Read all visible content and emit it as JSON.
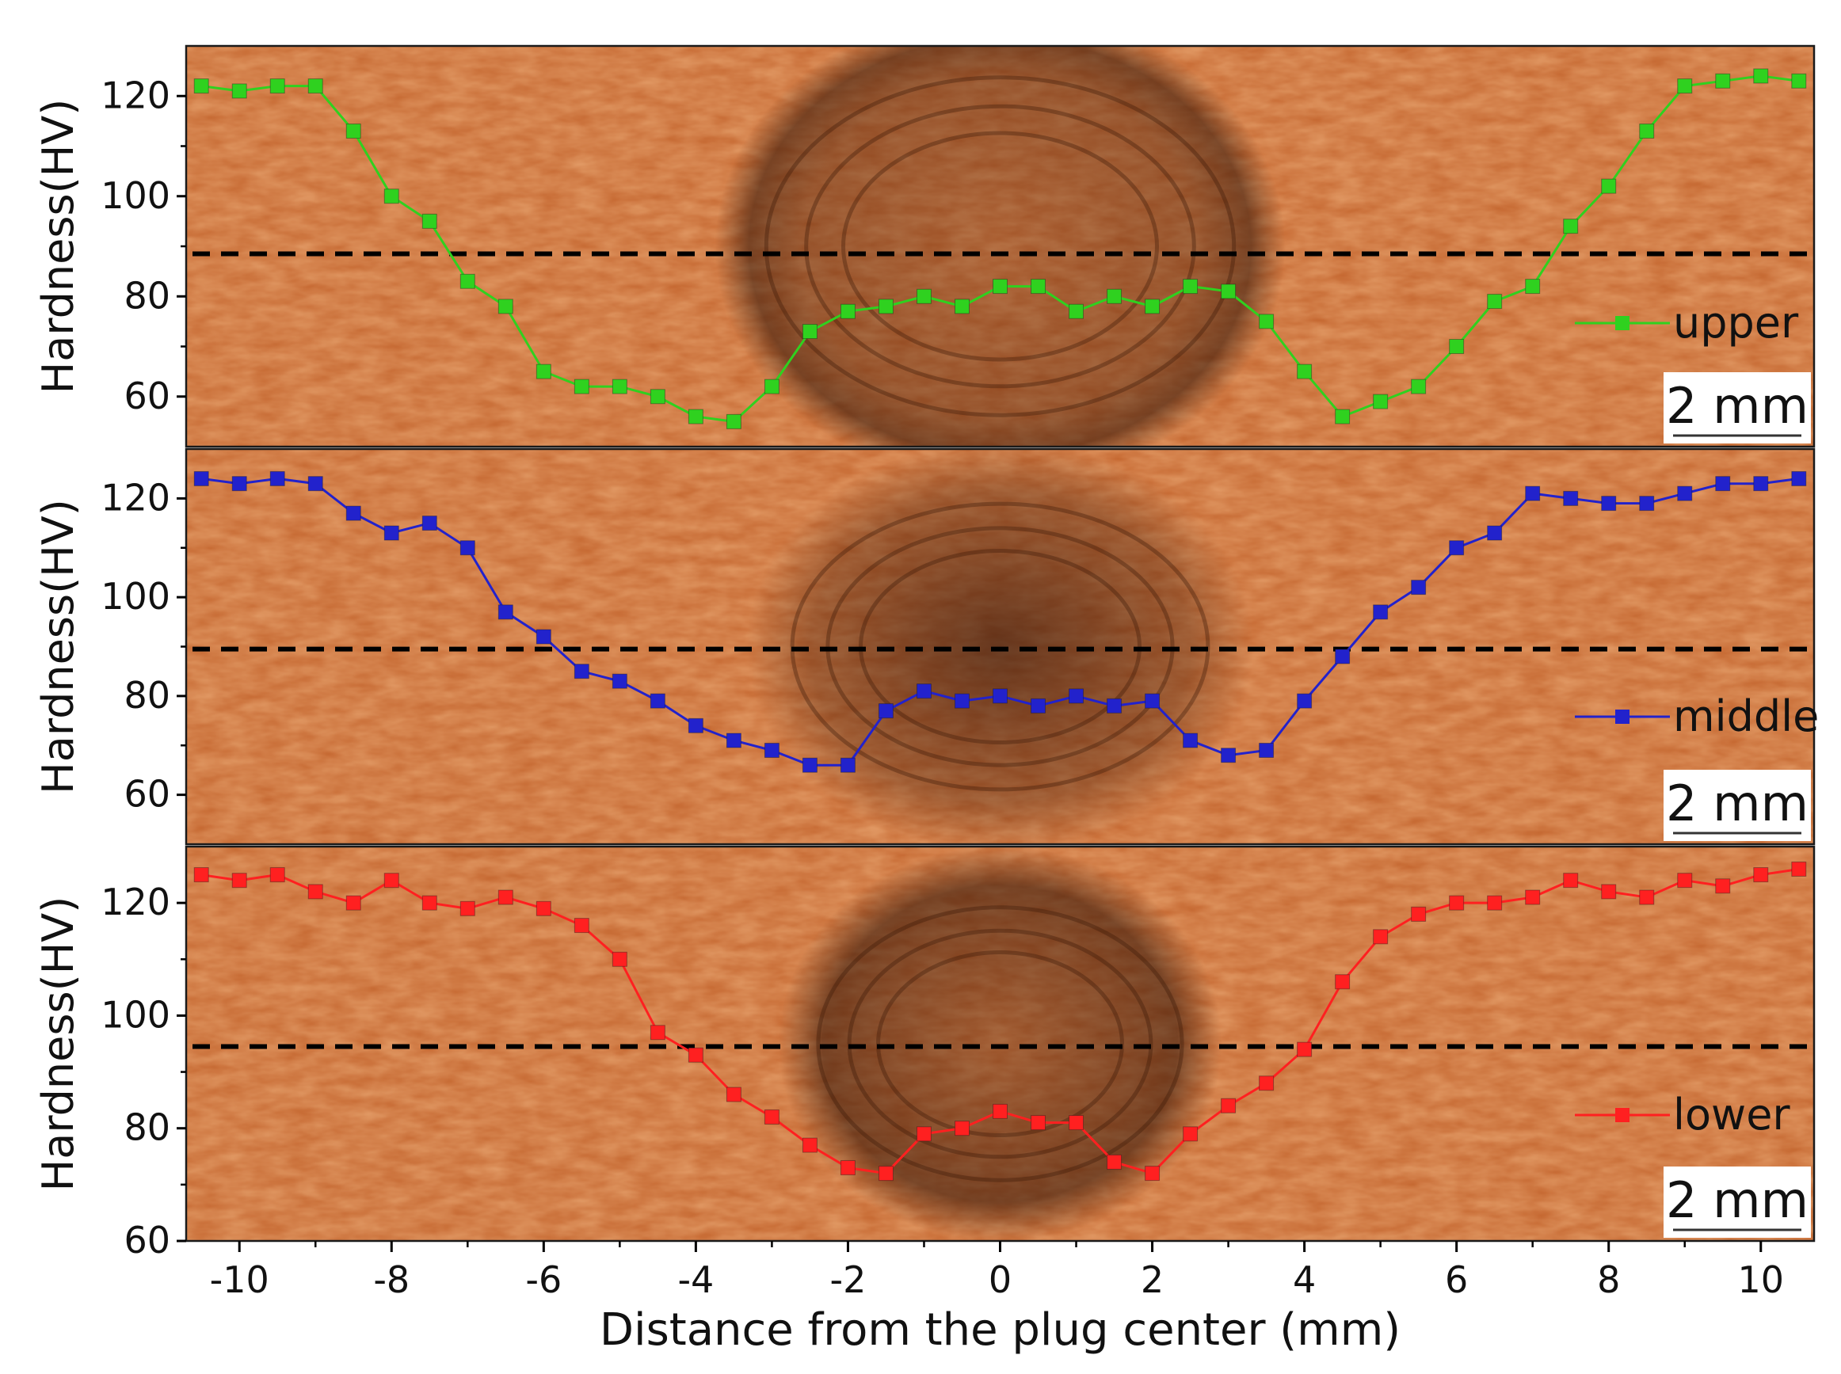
{
  "figure": {
    "xlabel": "Distance from the plug center  (mm)",
    "x_ticks": [
      -10,
      -8,
      -6,
      -4,
      -2,
      0,
      2,
      4,
      6,
      8,
      10
    ],
    "xlim": [
      -10.7,
      10.7
    ]
  },
  "chart_data": [
    {
      "type": "line",
      "name": "upper",
      "ylabel": "Hardness(HV)",
      "ylim": [
        50,
        130
      ],
      "y_ticks": [
        60,
        80,
        100,
        120
      ],
      "reference_line_y": 88.5,
      "scale_bar": "2 mm",
      "color": "#2fd11f",
      "marker": "circle",
      "x": [
        -10.5,
        -10,
        -9.5,
        -9,
        -8.5,
        -8,
        -7.5,
        -7,
        -6.5,
        -6,
        -5.5,
        -5,
        -4.5,
        -4,
        -3.5,
        -3,
        -2.5,
        -2,
        -1.5,
        -1,
        -0.5,
        0,
        0.5,
        1,
        1.5,
        2,
        2.5,
        3,
        3.5,
        4,
        4.5,
        5,
        5.5,
        6,
        6.5,
        7,
        7.5,
        8,
        8.5,
        9,
        9.5,
        10,
        10.5
      ],
      "y": [
        122,
        121,
        122,
        122,
        113,
        100,
        95,
        83,
        78,
        65,
        62,
        62,
        60,
        56,
        55,
        62,
        73,
        77,
        78,
        80,
        78,
        82,
        82,
        77,
        80,
        78,
        82,
        81,
        75,
        65,
        56,
        59,
        62,
        70,
        79,
        82,
        94,
        102,
        113,
        122,
        123,
        124,
        123
      ]
    },
    {
      "type": "line",
      "name": "middle",
      "ylabel": "Hardness(HV)",
      "ylim": [
        50,
        130
      ],
      "y_ticks": [
        60,
        80,
        100,
        120
      ],
      "reference_line_y": 89.5,
      "scale_bar": "2 mm",
      "color": "#2222cc",
      "marker": "square",
      "x": [
        -10.5,
        -10,
        -9.5,
        -9,
        -8.5,
        -8,
        -7.5,
        -7,
        -6.5,
        -6,
        -5.5,
        -5,
        -4.5,
        -4,
        -3.5,
        -3,
        -2.5,
        -2,
        -1.5,
        -1,
        -0.5,
        0,
        0.5,
        1,
        1.5,
        2,
        2.5,
        3,
        3.5,
        4,
        4.5,
        5,
        5.5,
        6,
        6.5,
        7,
        7.5,
        8,
        8.5,
        9,
        9.5,
        10,
        10.5
      ],
      "y": [
        124,
        123,
        124,
        123,
        117,
        113,
        115,
        110,
        97,
        92,
        85,
        83,
        79,
        74,
        71,
        69,
        66,
        66,
        77,
        81,
        79,
        80,
        78,
        80,
        78,
        79,
        71,
        68,
        69,
        79,
        88,
        97,
        102,
        110,
        113,
        121,
        120,
        119,
        119,
        121,
        123,
        123,
        124
      ]
    },
    {
      "type": "line",
      "name": "lower",
      "ylabel": "Hardness(HV)",
      "ylim": [
        60,
        130
      ],
      "y_ticks": [
        60,
        80,
        100,
        120
      ],
      "reference_line_y": 94.5,
      "scale_bar": "2 mm",
      "color": "#ff2020",
      "marker": "square",
      "x": [
        -10.5,
        -10,
        -9.5,
        -9,
        -8.5,
        -8,
        -7.5,
        -7,
        -6.5,
        -6,
        -5.5,
        -5,
        -4.5,
        -4,
        -3.5,
        -3,
        -2.5,
        -2,
        -1.5,
        -1,
        -0.5,
        0,
        0.5,
        1,
        1.5,
        2,
        2.5,
        3,
        3.5,
        4,
        4.5,
        5,
        5.5,
        6,
        6.5,
        7,
        7.5,
        8,
        8.5,
        9,
        9.5,
        10,
        10.5
      ],
      "y": [
        125,
        124,
        125,
        122,
        120,
        124,
        120,
        119,
        121,
        119,
        116,
        110,
        97,
        93,
        86,
        82,
        77,
        73,
        72,
        79,
        80,
        83,
        81,
        81,
        74,
        72,
        79,
        84,
        88,
        94,
        106,
        114,
        118,
        120,
        120,
        121,
        124,
        122,
        121,
        124,
        123,
        125,
        126
      ]
    }
  ]
}
